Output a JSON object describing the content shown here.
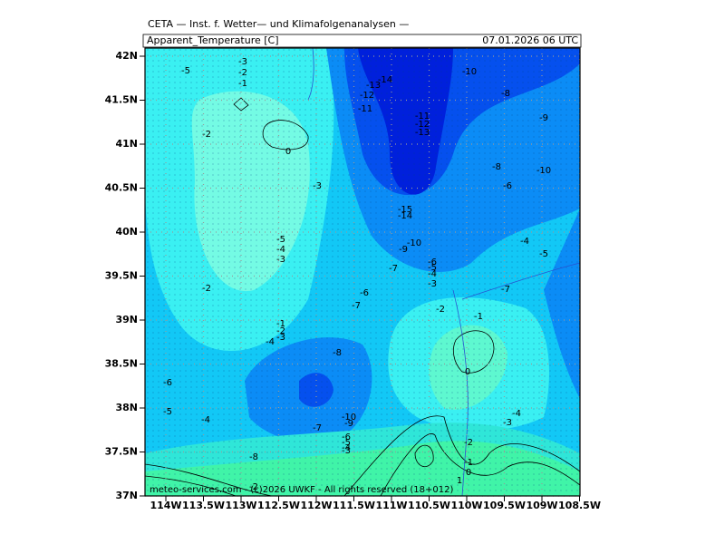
{
  "header": {
    "title": "CETA — Inst. f. Wetter— und Klimafolgenanalysen —",
    "parameter": "Apparent_Temperature [C]",
    "valid_time": "07.01.2026 06 UTC"
  },
  "axes": {
    "lat_labels": [
      "42N",
      "41.5N",
      "41N",
      "40.5N",
      "40N",
      "39.5N",
      "39N",
      "38.5N",
      "38N",
      "37.5N",
      "37N"
    ],
    "lon_labels": [
      "114W",
      "113.5W",
      "113W",
      "112.5W",
      "112W",
      "111.5W",
      "111W",
      "110.5W",
      "110W",
      "109.5W",
      "109W",
      "108.5W"
    ]
  },
  "contour_labels": [
    "-5",
    "-3",
    "-2",
    "-1",
    "-14",
    "-13",
    "-12",
    "-11",
    "-10",
    "-8",
    "-9",
    "-2",
    "0",
    "-11",
    "-12",
    "-13",
    "-8",
    "-10",
    "-3",
    "-6",
    "-15",
    "-14",
    "-5",
    "-4",
    "-3",
    "-10",
    "-9",
    "-4",
    "-5",
    "-7",
    "-6",
    "-5",
    "-4",
    "-3",
    "-2",
    "-6",
    "-7",
    "-7",
    "-2",
    "-1",
    "-1",
    "-2",
    "-3",
    "-4",
    "-8",
    "0",
    "-6",
    "-5",
    "-4",
    "-10",
    "-9",
    "-7",
    "-4",
    "-3",
    "-6",
    "-5",
    "-4",
    "-3",
    "-8",
    "-2",
    "-1",
    "0",
    "1",
    "-2"
  ],
  "footer": "meteo-services.com - (c)2026 UWKF - All rights reserved (18+012)"
}
